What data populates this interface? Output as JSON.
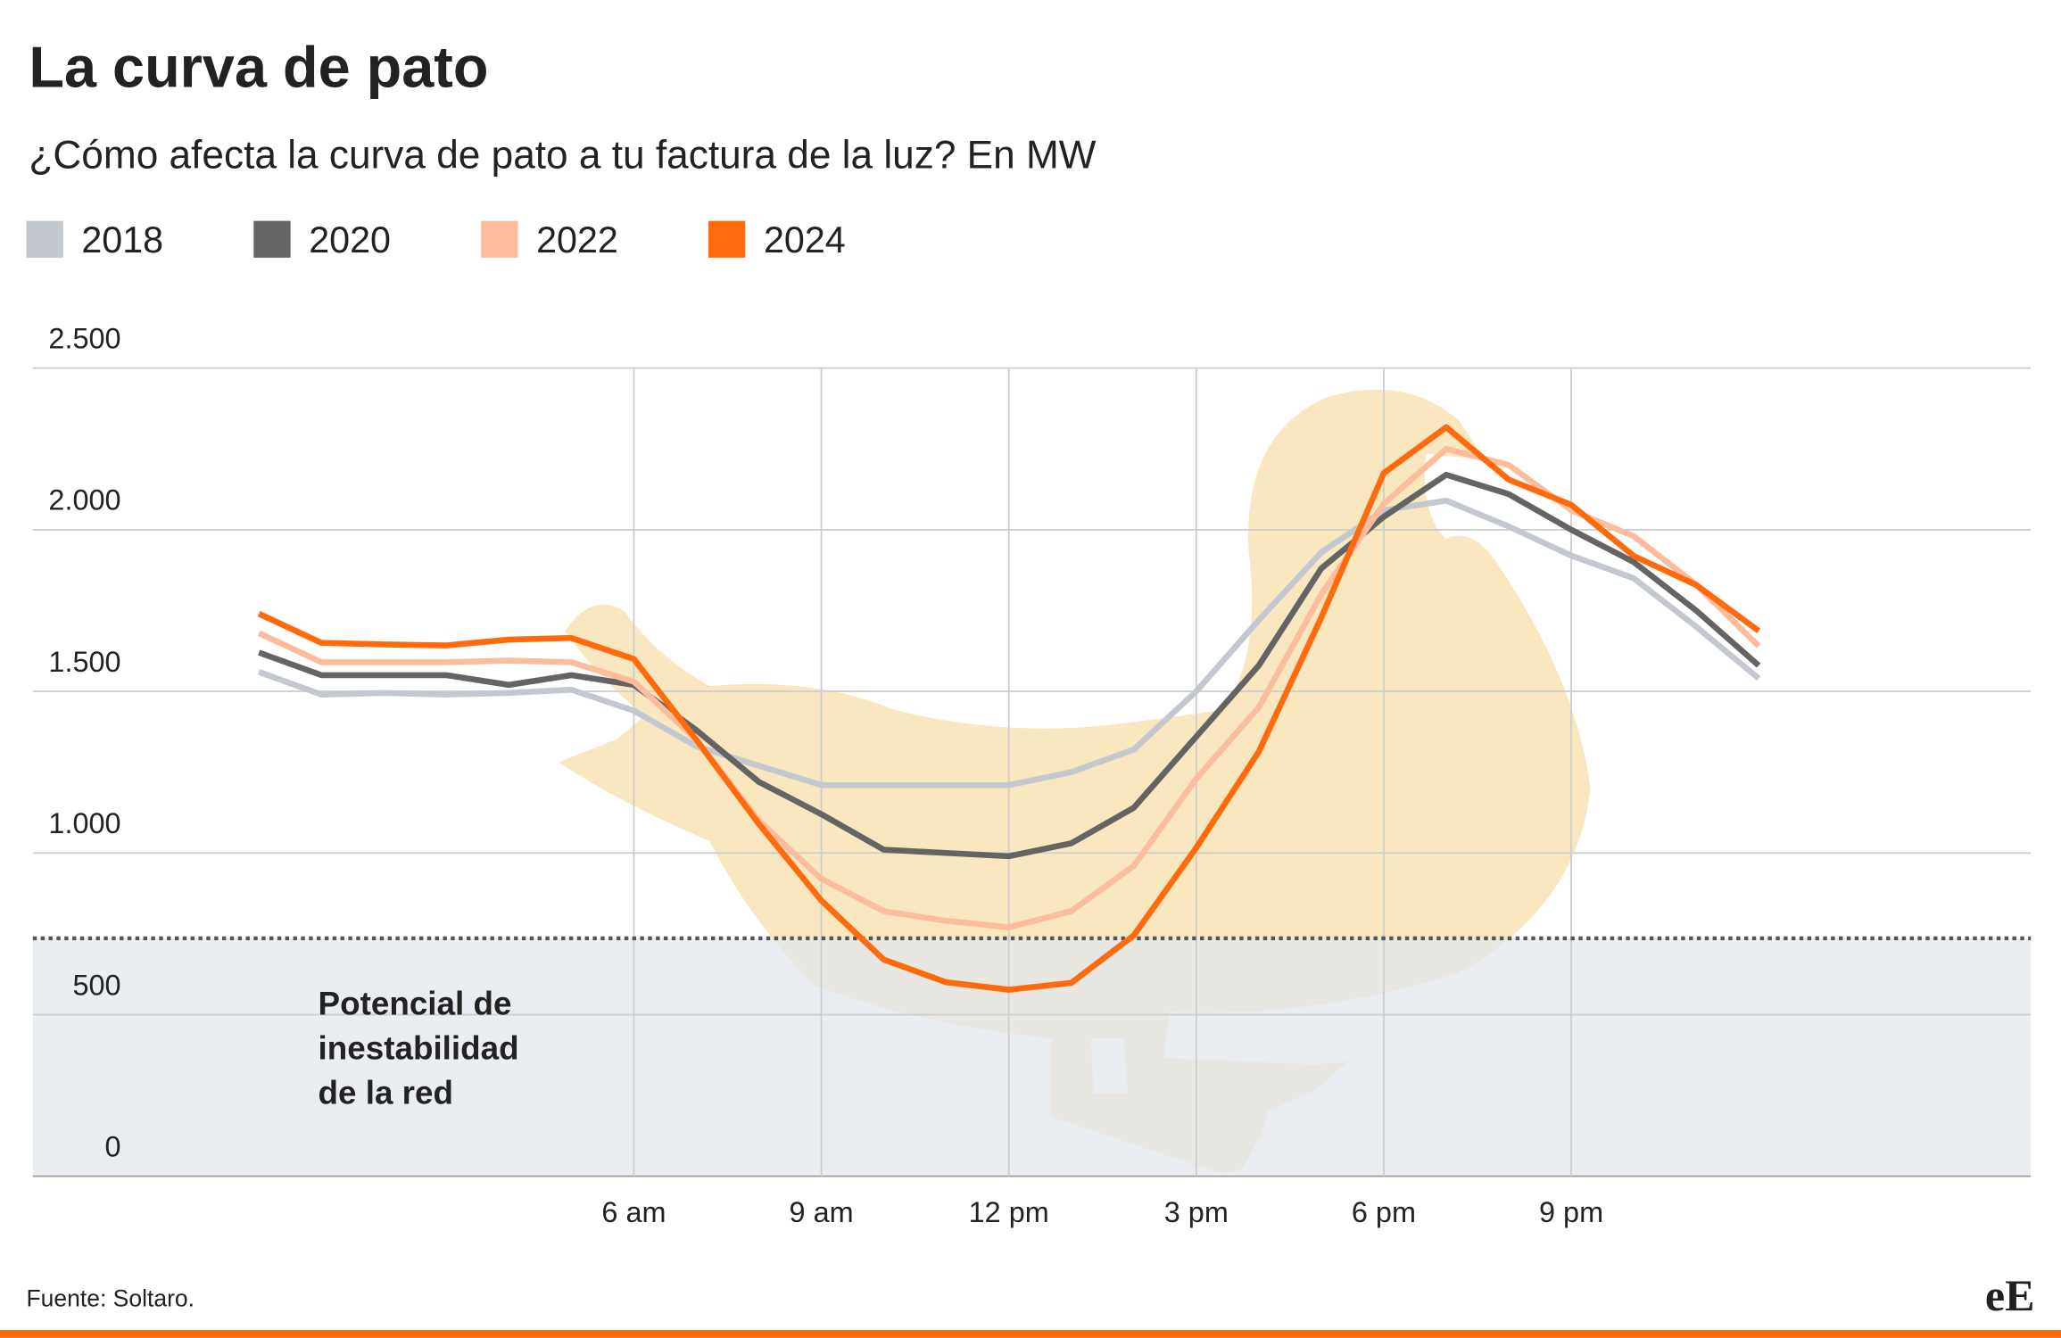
{
  "chart_data": {
    "type": "line",
    "title": "La curva de pato",
    "subtitle": "¿Cómo afecta la curva de pato a tu factura de la luz? En MW",
    "x": [
      0,
      1,
      2,
      3,
      4,
      5,
      6,
      7,
      8,
      9,
      10,
      11,
      12,
      13,
      14,
      15,
      16,
      17,
      18,
      19,
      20,
      21,
      22,
      23,
      24
    ],
    "xlim": [
      -3.6,
      28.4
    ],
    "xticks": [
      {
        "value": 6,
        "label": "6 am"
      },
      {
        "value": 9,
        "label": "9 am"
      },
      {
        "value": 12,
        "label": "12 pm"
      },
      {
        "value": 15,
        "label": "3 pm"
      },
      {
        "value": 18,
        "label": "6 pm"
      },
      {
        "value": 21,
        "label": "9 pm"
      }
    ],
    "ylim": [
      0,
      2500
    ],
    "yticks": [
      0,
      500,
      {
        "value": 1000,
        "label": "1.000"
      },
      {
        "value": 1500,
        "label": "1.500"
      },
      {
        "value": 2000,
        "label": "2.000"
      },
      {
        "value": 2500,
        "label": "2.500"
      }
    ],
    "grid": true,
    "series": [
      {
        "name": "2018",
        "color": "#c3c8d0",
        "values": [
          1560,
          1490,
          1495,
          1490,
          1495,
          1505,
          1440,
          1330,
          1270,
          1210,
          1210,
          1210,
          1210,
          1250,
          1320,
          1500,
          1720,
          1930,
          2060,
          2090,
          2010,
          1920,
          1850,
          1700,
          1540
        ]
      },
      {
        "name": "2020",
        "color": "#646464",
        "values": [
          1620,
          1550,
          1550,
          1550,
          1520,
          1550,
          1520,
          1380,
          1220,
          1120,
          1010,
          1000,
          990,
          1030,
          1140,
          1360,
          1580,
          1880,
          2040,
          2170,
          2110,
          2000,
          1900,
          1750,
          1580
        ]
      },
      {
        "name": "2022",
        "color": "#fdbc9c",
        "values": [
          1680,
          1590,
          1590,
          1590,
          1595,
          1590,
          1530,
          1350,
          1100,
          920,
          820,
          790,
          770,
          820,
          960,
          1230,
          1450,
          1800,
          2080,
          2250,
          2200,
          2060,
          1980,
          1830,
          1640
        ]
      },
      {
        "name": "2024",
        "color": "#ff6a0d",
        "values": [
          1740,
          1650,
          1645,
          1642,
          1660,
          1665,
          1600,
          1350,
          1090,
          853,
          670,
          600,
          577,
          598,
          745,
          1016,
          1313,
          1728,
          2175,
          2317,
          2155,
          2077,
          1919,
          1829,
          1687
        ]
      }
    ],
    "threshold": 736,
    "annotation": [
      "Potencial de",
      "inestabilidad",
      "de la red"
    ],
    "source": "Fuente: Soltaro.",
    "logo": "eE"
  }
}
